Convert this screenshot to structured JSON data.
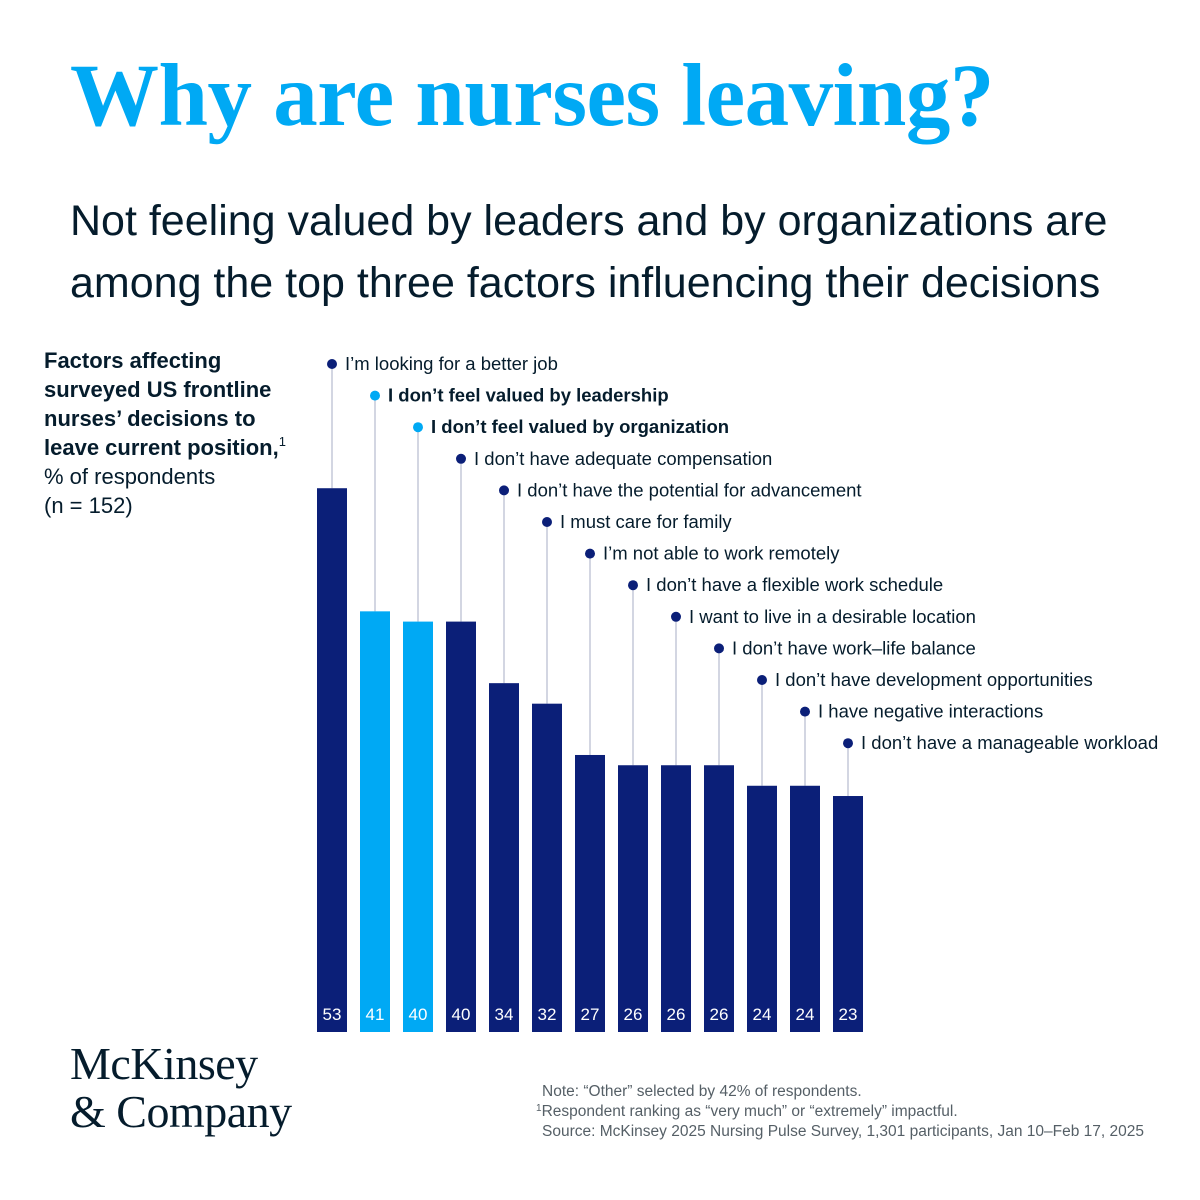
{
  "title": "Why are nurses leaving?",
  "subtitle": "Not feeling valued by leaders and by organizations are among the top three factors influencing their decisions",
  "description": {
    "line1_bold": "Factors affecting surveyed US frontline nurses’ decisions to leave current position,",
    "footnote_marker": "1",
    "line2": "% of respondents",
    "line3": "(n = 152)"
  },
  "colors": {
    "dark_navy": "#0b1f78",
    "highlight_blue": "#00a9f4",
    "connector": "#a7aec6",
    "value_label": "#ffffff",
    "title": "#00a9f4",
    "text": "#051c2c"
  },
  "chart_data": {
    "type": "bar",
    "categories": [
      "I’m looking for a better job",
      "I don’t feel valued by leadership",
      "I don’t feel valued by organization",
      "I don’t have adequate compensation",
      "I don’t have the potential for advancement",
      "I must care for family",
      "I’m not able to work remotely",
      "I don’t have a flexible work schedule",
      "I want to live in a desirable location",
      "I don’t have work–life balance",
      "I don’t have development opportunities",
      "I have negative interactions",
      "I don’t have a manageable workload"
    ],
    "values": [
      53,
      41,
      40,
      40,
      34,
      32,
      27,
      26,
      26,
      26,
      24,
      24,
      23
    ],
    "highlighted": [
      false,
      true,
      true,
      false,
      false,
      false,
      false,
      false,
      false,
      false,
      false,
      false,
      false
    ],
    "ylim": [
      0,
      53
    ],
    "grid": false,
    "legend": "none",
    "data_labels": "inside-bottom"
  },
  "logo": {
    "line1": "McKinsey",
    "line2": "& Company"
  },
  "notes": {
    "note": "Note: “Other” selected by 42% of respondents.",
    "footnote_marker": "1",
    "footnote": "Respondent ranking as “very much” or “extremely” impactful.",
    "source": "Source: McKinsey 2025 Nursing Pulse Survey, 1,301 participants, Jan 10–Feb 17, 2025"
  }
}
